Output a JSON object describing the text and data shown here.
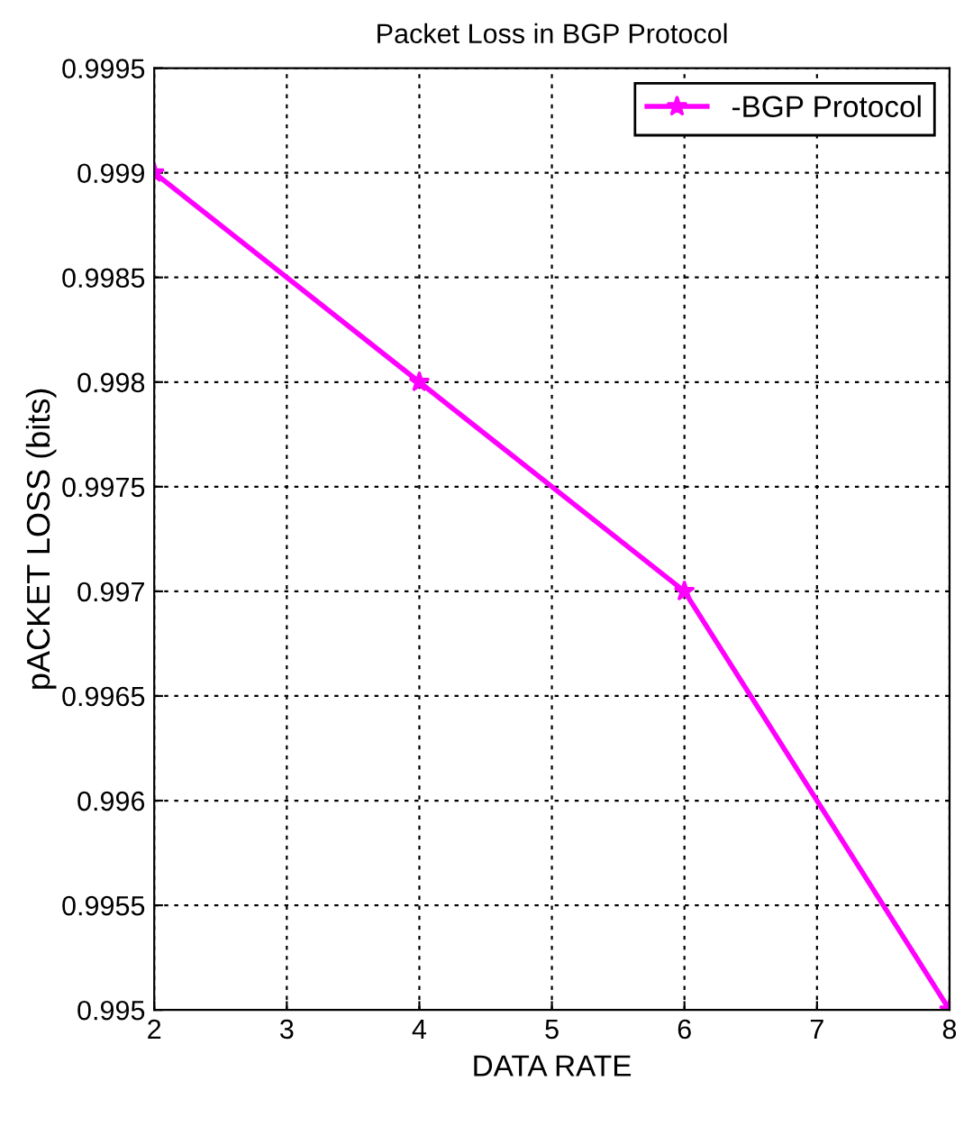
{
  "chart_data": {
    "type": "line",
    "title": "Packet Loss in BGP Protocol",
    "xlabel": "DATA RATE",
    "ylabel": "pACKET LOSS (bits)",
    "x": [
      2,
      4,
      6,
      8
    ],
    "series": [
      {
        "name": "-BGP Protocol",
        "color": "#ff00ff",
        "values": [
          0.999,
          0.998,
          0.997,
          0.995
        ]
      }
    ],
    "xlim": [
      2,
      8
    ],
    "xticks": [
      2,
      3,
      4,
      5,
      6,
      7,
      8
    ],
    "ylim": [
      0.995,
      0.9995
    ],
    "yticks": [
      0.995,
      0.9955,
      0.996,
      0.9965,
      0.997,
      0.9975,
      0.998,
      0.9985,
      0.999,
      0.9995
    ],
    "grid": true,
    "legend": "top right",
    "marker": "star",
    "line_style": "solid"
  }
}
